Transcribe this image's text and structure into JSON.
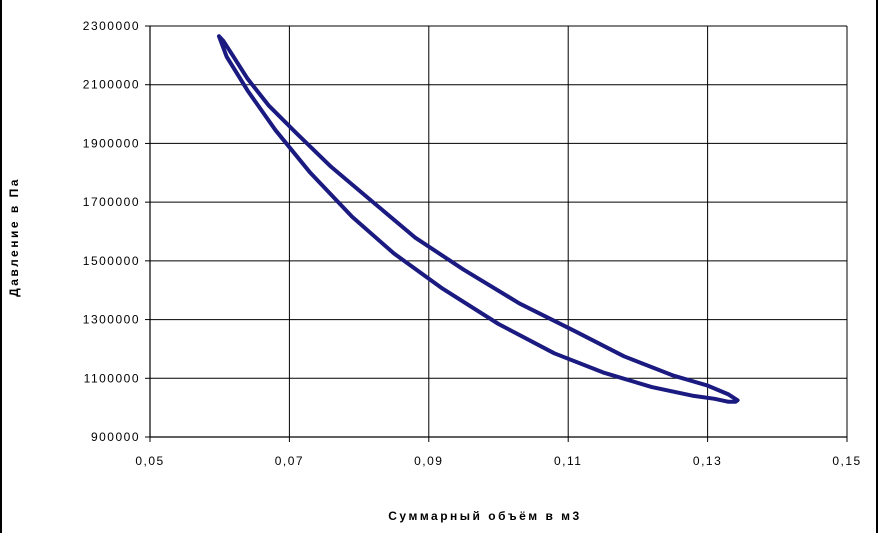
{
  "colors": {
    "series": "#1a1a80",
    "grid": "#000000",
    "background": "#ffffff"
  },
  "chart_data": {
    "type": "line",
    "title": "",
    "xlabel": "Суммарный объём в м3",
    "ylabel": "Давление в Па",
    "xlim": [
      0.05,
      0.15
    ],
    "ylim": [
      900000,
      2300000
    ],
    "x_ticks": [
      0.05,
      0.07,
      0.09,
      0.11,
      0.13,
      0.15
    ],
    "x_tick_labels": [
      "0,05",
      "0,07",
      "0,09",
      "0,11",
      "0,13",
      "0,15"
    ],
    "y_ticks": [
      900000,
      1100000,
      1300000,
      1500000,
      1700000,
      1900000,
      2100000,
      2300000
    ],
    "y_tick_labels": [
      "900000",
      "1100000",
      "1300000",
      "1500000",
      "1700000",
      "1900000",
      "2100000",
      "2300000"
    ],
    "grid": true,
    "legend": "none",
    "series": [
      {
        "x": [
          0.0599,
          0.061,
          0.064,
          0.068,
          0.073,
          0.079,
          0.085,
          0.092,
          0.1,
          0.108,
          0.115,
          0.122,
          0.128,
          0.131,
          0.133,
          0.134,
          0.1343,
          0.133,
          0.13,
          0.125,
          0.118,
          0.111,
          0.103,
          0.095,
          0.088,
          0.082,
          0.076,
          0.071,
          0.067,
          0.064,
          0.062,
          0.0605,
          0.0599
        ],
        "y": [
          2265000,
          2195000,
          2080000,
          1945000,
          1800000,
          1650000,
          1525000,
          1405000,
          1285000,
          1185000,
          1120000,
          1070000,
          1040000,
          1030000,
          1020000,
          1020000,
          1025000,
          1045000,
          1075000,
          1110000,
          1175000,
          1260000,
          1355000,
          1470000,
          1580000,
          1700000,
          1820000,
          1935000,
          2030000,
          2120000,
          2195000,
          2250000,
          2265000
        ]
      }
    ]
  }
}
